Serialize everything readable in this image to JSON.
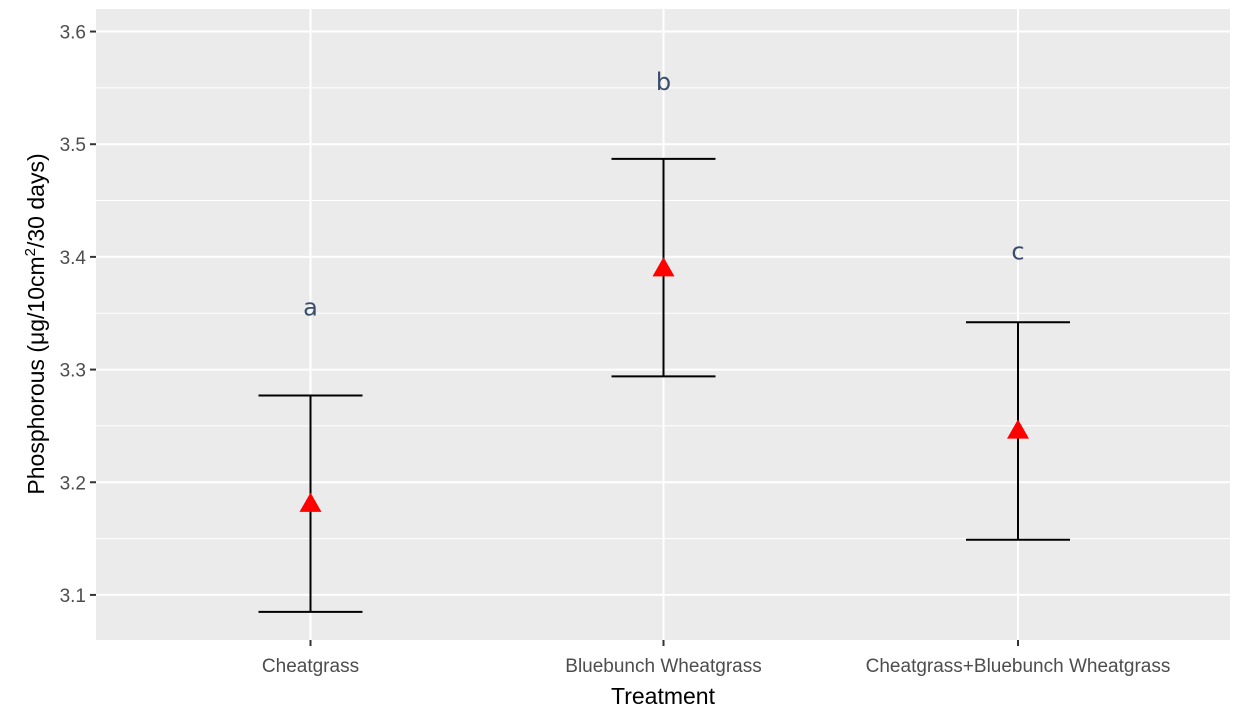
{
  "chart_data": {
    "type": "scatter",
    "title": "",
    "xlabel": "Treatment",
    "ylabel_parts": {
      "before": "Phosphorous (μg/10cm",
      "sup": "2",
      "after": "/30 days)"
    },
    "categories": [
      "Cheatgrass",
      "Bluebunch Wheatgrass",
      "Cheatgrass+Bluebunch Wheatgrass"
    ],
    "means": [
      3.181,
      3.39,
      3.246
    ],
    "lower": [
      3.085,
      3.294,
      3.149
    ],
    "upper": [
      3.277,
      3.487,
      3.342
    ],
    "group_letters": [
      "a",
      "b",
      "c"
    ],
    "letter_y": [
      3.355,
      3.555,
      3.405
    ],
    "ylim": [
      3.06,
      3.62
    ],
    "yticks": [
      3.1,
      3.2,
      3.3,
      3.4,
      3.5,
      3.6
    ],
    "ytick_labels": [
      "3.1",
      "3.2",
      "3.3",
      "3.4",
      "3.5",
      "3.6"
    ],
    "grid": true,
    "marker": "triangle",
    "marker_color": "#ff0000",
    "errorbar_color": "#000000",
    "panel_color": "#ebebeb",
    "grid_color": "#ffffff",
    "letter_color": "#3a4d6b"
  }
}
